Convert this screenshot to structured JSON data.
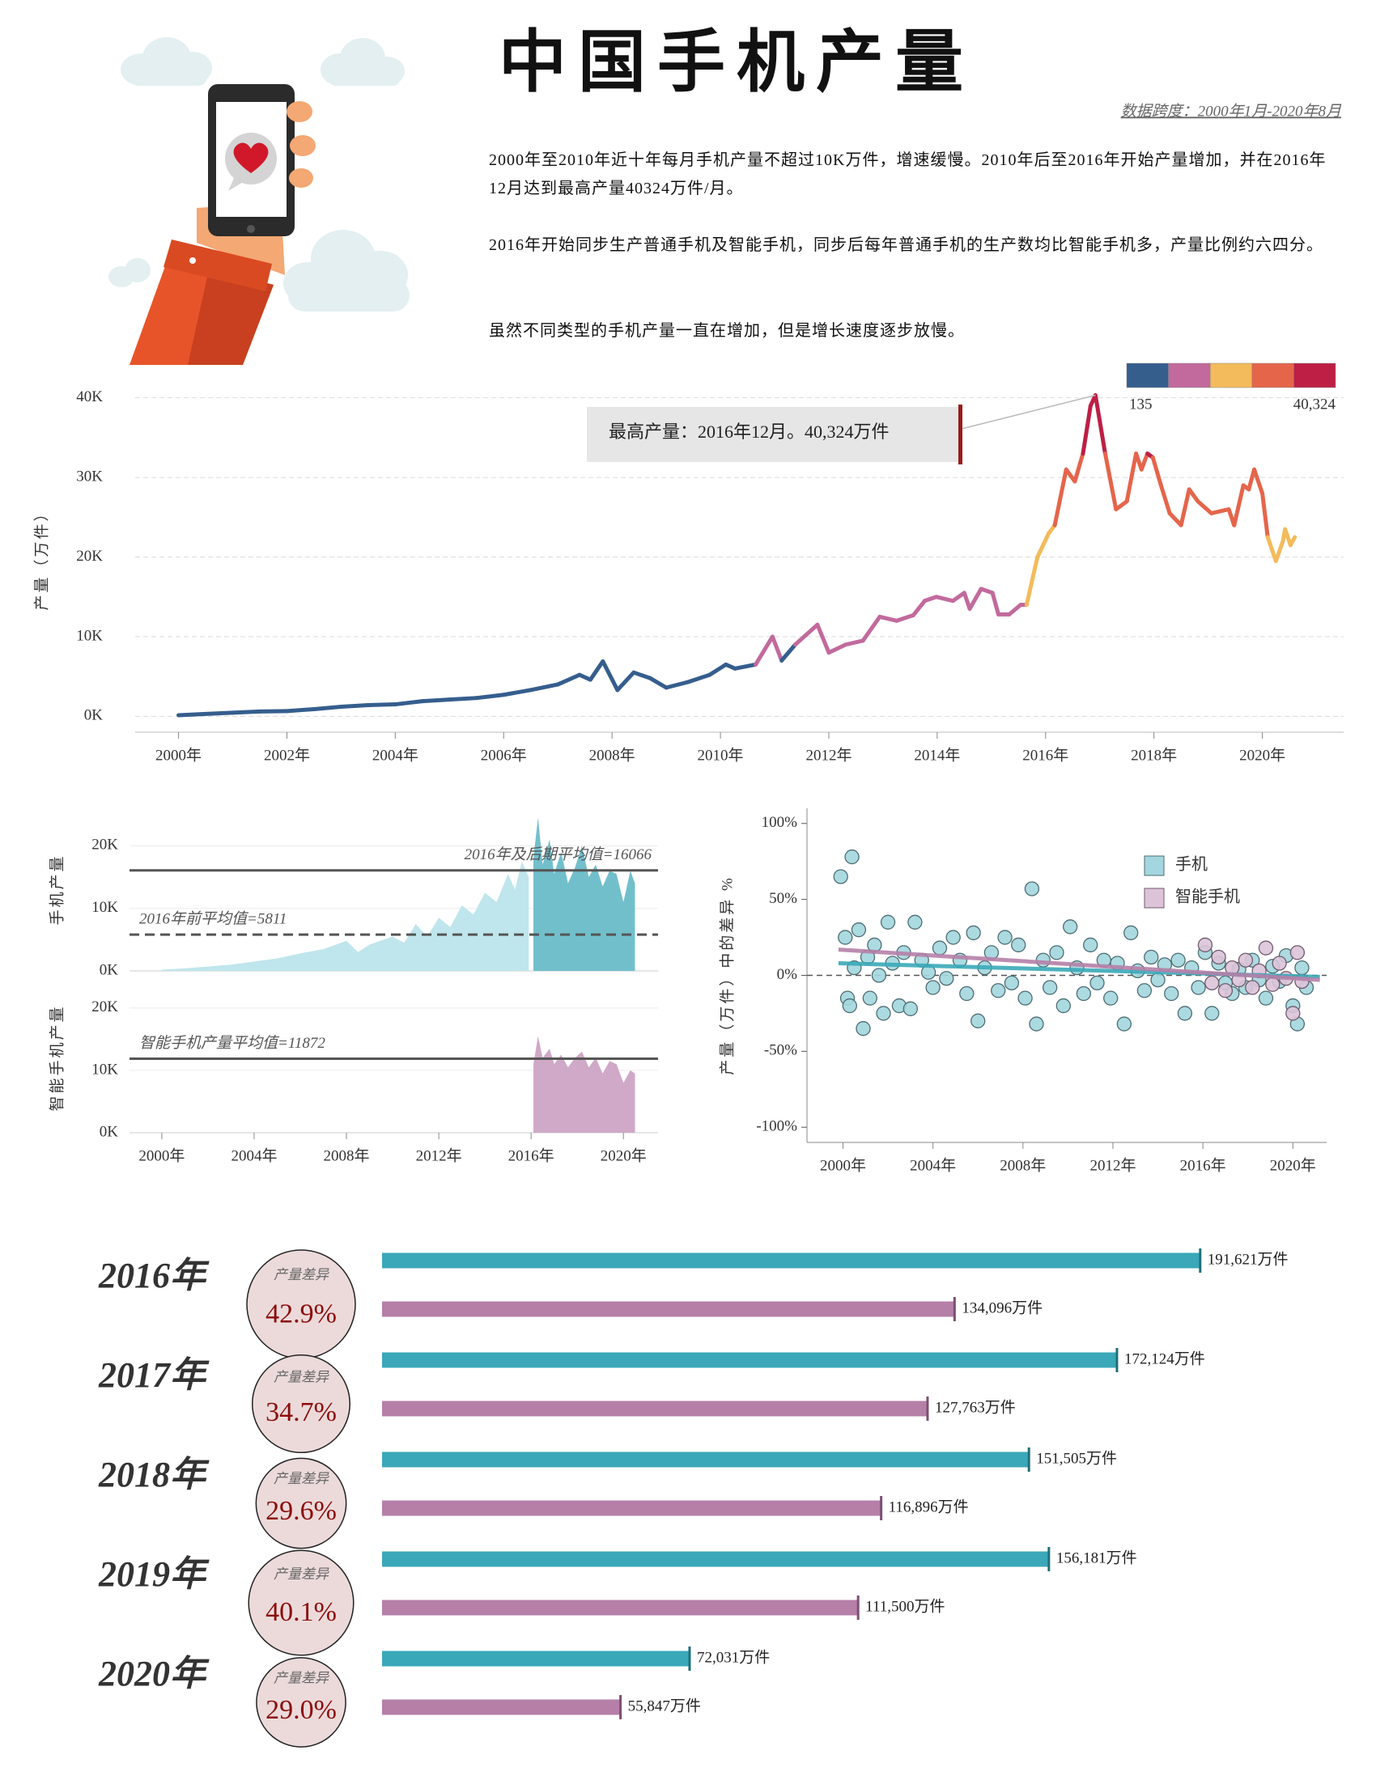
{
  "header": {
    "title": "中国手机产量",
    "date_span": "数据跨度：2000年1月-2020年8月",
    "paragraphs": [
      "2000年至2010年近十年每月手机产量不超过10K万件，增速缓慢。2010年后至2016年开始产量增加，并在2016年12月达到最高产量40324万件/月。",
      "2016年开始同步生产普通手机及智能手机，同步后每年普通手机的生产数均比智能手机多，产量比例约六四分。",
      "虽然不同类型的手机产量一直在增加，但是增长速度逐步放慢。"
    ]
  },
  "chart_data": [
    {
      "type": "line",
      "y_label": "产量（万件）",
      "annotation": "最高产量：2016年12月。40,324万件",
      "xlim": [
        1999.2,
        2021.5
      ],
      "xticks": [
        {
          "value": 2000,
          "label": "2000年"
        },
        {
          "value": 2002,
          "label": "2002年"
        },
        {
          "value": 2004,
          "label": "2004年"
        },
        {
          "value": 2006,
          "label": "2006年"
        },
        {
          "value": 2008,
          "label": "2008年"
        },
        {
          "value": 2010,
          "label": "2010年"
        },
        {
          "value": 2012,
          "label": "2012年"
        },
        {
          "value": 2014,
          "label": "2014年"
        },
        {
          "value": 2016,
          "label": "2016年"
        },
        {
          "value": 2018,
          "label": "2018年"
        },
        {
          "value": 2020,
          "label": "2020年"
        }
      ],
      "ylim": [
        -2000,
        42000
      ],
      "yticks": [
        {
          "value": 0,
          "label": "0K"
        },
        {
          "value": 10000,
          "label": "10K"
        },
        {
          "value": 20000,
          "label": "20K"
        },
        {
          "value": 30000,
          "label": "30K"
        },
        {
          "value": 40000,
          "label": "40K"
        }
      ],
      "grid": true,
      "x": [
        2000,
        2000.5,
        2001,
        2001.5,
        2002,
        2002.5,
        2003,
        2003.5,
        2004,
        2004.5,
        2005,
        2005.5,
        2006,
        2006.5,
        2007,
        2007.4,
        2007.6,
        2007.83,
        2008.1,
        2008.4,
        2008.7,
        2009,
        2009.4,
        2009.8,
        2010.1,
        2010.27,
        2010.65,
        2010.96,
        2011.13,
        2011.38,
        2011.79,
        2012,
        2012.31,
        2012.63,
        2012.94,
        2013.25,
        2013.56,
        2013.77,
        2013.98,
        2014.29,
        2014.5,
        2014.6,
        2014.81,
        2015.02,
        2015.13,
        2015.33,
        2015.54,
        2015.65,
        2015.85,
        2016.06,
        2016.17,
        2016.38,
        2016.54,
        2016.69,
        2016.83,
        2016.92,
        2017.1,
        2017.3,
        2017.5,
        2017.67,
        2017.77,
        2017.88,
        2017.98,
        2018.13,
        2018.29,
        2018.5,
        2018.65,
        2018.81,
        2019.06,
        2019.38,
        2019.48,
        2019.65,
        2019.75,
        2019.85,
        2020,
        2020.1,
        2020.25,
        2020.38,
        2020.42,
        2020.52,
        2020.6
      ],
      "series": [
        {
          "values": [
            135,
            300,
            450,
            600,
            650,
            900,
            1200,
            1400,
            1500,
            1900,
            2100,
            2300,
            2700,
            3300,
            4000,
            5200,
            4600,
            6900,
            3300,
            5500,
            4800,
            3600,
            4300,
            5200,
            6500,
            6000,
            6500,
            10000,
            7000,
            9000,
            11500,
            8000,
            9000,
            9500,
            12500,
            12000,
            12700,
            14500,
            15000,
            14500,
            15500,
            13500,
            16000,
            15500,
            12800,
            12800,
            14000,
            14000,
            20000,
            23000,
            24000,
            31000,
            29500,
            33000,
            39000,
            40324,
            33000,
            26000,
            27000,
            33000,
            31000,
            33000,
            32500,
            29000,
            25500,
            24000,
            28500,
            27000,
            25500,
            26000,
            24000,
            29000,
            28500,
            31000,
            28000,
            22500,
            19500,
            22000,
            23500,
            21500,
            22500
          ]
        }
      ],
      "colorbar": {
        "colors": [
          "#355e8d",
          "#c26a9d",
          "#f3bb5b",
          "#e5654b",
          "#bd1f45"
        ],
        "ticks": [
          135,
          {
            "value": 40324,
            "label": "40,324"
          }
        ]
      }
    },
    {
      "type": "area",
      "y_label": "手机产量",
      "xlim": [
        1998.6,
        2021.5
      ],
      "ylim": [
        0,
        26000
      ],
      "yticks": [
        {
          "value": 0,
          "label": "0K"
        },
        {
          "value": 10000,
          "label": "10K"
        },
        {
          "value": 20000,
          "label": "20K"
        }
      ],
      "grid": true,
      "series": [
        {
          "color": "#bfe6ec",
          "x": [
            2000,
            2001,
            2002,
            2003,
            2004,
            2005,
            2006,
            2007,
            2008,
            2008.5,
            2009,
            2010,
            2010.5,
            2011,
            2011.5,
            2012,
            2012.5,
            2013,
            2013.5,
            2014,
            2014.5,
            2015,
            2015.3,
            2015.6,
            2015.9
          ],
          "values": [
            200,
            400,
            700,
            1000,
            1500,
            2000,
            2800,
            3500,
            4800,
            3000,
            4200,
            5500,
            4500,
            7500,
            5500,
            8500,
            7000,
            10500,
            9000,
            12500,
            11000,
            15500,
            13000,
            17500,
            15000
          ]
        },
        {
          "color": "#72bfcc",
          "x": [
            2016.1,
            2016.3,
            2016.5,
            2016.8,
            2017,
            2017.3,
            2017.6,
            2017.9,
            2018.2,
            2018.5,
            2018.8,
            2019.1,
            2019.4,
            2019.7,
            2020,
            2020.3,
            2020.5
          ],
          "values": [
            18000,
            24500,
            17000,
            21000,
            15500,
            19000,
            14000,
            16500,
            20000,
            15000,
            17000,
            13500,
            16000,
            15500,
            11000,
            16000,
            14000
          ]
        }
      ],
      "reference_lines": [
        {
          "value": 16066,
          "label": "2016年及后期平均值=16066",
          "style": "solid"
        },
        {
          "value": 5811,
          "label": "2016年前平均值=5811",
          "style": "dashed"
        }
      ]
    },
    {
      "type": "area",
      "y_label": "智能手机产量",
      "xlim": [
        1998.6,
        2021.5
      ],
      "xticks": [
        {
          "value": 2000,
          "label": "2000年"
        },
        {
          "value": 2004,
          "label": "2004年"
        },
        {
          "value": 2008,
          "label": "2008年"
        },
        {
          "value": 2012,
          "label": "2012年"
        },
        {
          "value": 2016,
          "label": "2016年"
        },
        {
          "value": 2020,
          "label": "2020年"
        }
      ],
      "ylim": [
        0,
        24000
      ],
      "yticks": [
        {
          "value": 0,
          "label": "0K"
        },
        {
          "value": 10000,
          "label": "10K"
        },
        {
          "value": 20000,
          "label": "20K"
        }
      ],
      "grid": true,
      "series": [
        {
          "color": "#cfa9c7",
          "x": [
            2016.1,
            2016.3,
            2016.5,
            2016.8,
            2017,
            2017.3,
            2017.6,
            2017.9,
            2018.2,
            2018.5,
            2018.8,
            2019.1,
            2019.4,
            2019.7,
            2020,
            2020.3,
            2020.5
          ],
          "values": [
            11000,
            15500,
            12000,
            13500,
            11000,
            12500,
            10500,
            12000,
            13000,
            10500,
            12000,
            9500,
            11500,
            11000,
            8000,
            10000,
            9500
          ]
        }
      ],
      "reference_lines": [
        {
          "value": 11872,
          "label": "智能手机产量平均值=11872",
          "style": "solid"
        }
      ]
    },
    {
      "type": "scatter",
      "y_label": "产量（万件）中的差异 %",
      "xlim": [
        1998.4,
        2021.5
      ],
      "xticks": [
        {
          "value": 2000,
          "label": "2000年"
        },
        {
          "value": 2004,
          "label": "2004年"
        },
        {
          "value": 2008,
          "label": "2008年"
        },
        {
          "value": 2012,
          "label": "2012年"
        },
        {
          "value": 2016,
          "label": "2016年"
        },
        {
          "value": 2020,
          "label": "2020年"
        }
      ],
      "ylim": [
        -110,
        110
      ],
      "yticks": [
        {
          "value": -100,
          "label": "-100%"
        },
        {
          "value": -50,
          "label": "-50%"
        },
        {
          "value": 0,
          "label": "0%"
        },
        {
          "value": 50,
          "label": "50%"
        },
        {
          "value": 100,
          "label": "100%"
        }
      ],
      "zero_line": true,
      "series": [
        {
          "name": "手机",
          "color": "#a3d6de",
          "stroke": "#4d6d73",
          "x": [
            1999.9,
            2000.4,
            2000.1,
            2000.2,
            2000.3,
            2000.5,
            2000.7,
            2000.9,
            2001.1,
            2001.2,
            2001.4,
            2001.6,
            2001.8,
            2002.0,
            2002.2,
            2002.5,
            2002.7,
            2003.0,
            2003.2,
            2003.5,
            2003.8,
            2004.0,
            2004.3,
            2004.6,
            2004.9,
            2005.2,
            2005.5,
            2005.8,
            2006.0,
            2006.3,
            2006.6,
            2006.9,
            2007.2,
            2007.5,
            2007.8,
            2008.1,
            2008.4,
            2008.6,
            2008.9,
            2009.2,
            2009.5,
            2009.8,
            2010.1,
            2010.4,
            2010.7,
            2011.0,
            2011.3,
            2011.6,
            2011.9,
            2012.2,
            2012.5,
            2012.8,
            2013.1,
            2013.4,
            2013.7,
            2014.0,
            2014.3,
            2014.6,
            2014.9,
            2015.2,
            2015.5,
            2015.8,
            2016.1,
            2016.4,
            2016.7,
            2017.0,
            2017.3,
            2017.6,
            2017.9,
            2018.2,
            2018.5,
            2018.8,
            2019.1,
            2019.4,
            2019.7,
            2020.0,
            2020.2,
            2020.4,
            2020.6
          ],
          "values": [
            65,
            78,
            25,
            -15,
            -20,
            5,
            30,
            -35,
            12,
            -15,
            20,
            0,
            -25,
            35,
            8,
            -20,
            15,
            -22,
            35,
            10,
            2,
            -8,
            18,
            -2,
            25,
            10,
            -12,
            28,
            -30,
            5,
            15,
            -10,
            25,
            -5,
            20,
            -15,
            57,
            -32,
            10,
            -8,
            15,
            -20,
            32,
            5,
            -12,
            20,
            -5,
            10,
            -15,
            8,
            -32,
            28,
            3,
            -10,
            12,
            -3,
            7,
            -12,
            10,
            -25,
            5,
            -8,
            15,
            -25,
            8,
            -5,
            -12,
            4,
            -8,
            10,
            -3,
            -15,
            6,
            -4,
            13,
            -20,
            -32,
            5,
            -8
          ],
          "trend": {
            "color": "#3aa8b8",
            "x": [
              1999.8,
              2021.2
            ],
            "values": [
              8,
              -1
            ]
          }
        },
        {
          "name": "智能手机",
          "color": "#dcc3d8",
          "stroke": "#6f5b6c",
          "x": [
            2016.1,
            2016.4,
            2016.7,
            2017.0,
            2017.3,
            2017.6,
            2017.9,
            2018.2,
            2018.5,
            2018.8,
            2019.1,
            2019.4,
            2019.7,
            2020.0,
            2020.2,
            2020.4
          ],
          "values": [
            20,
            -5,
            12,
            -10,
            5,
            -3,
            10,
            -8,
            3,
            18,
            -6,
            8,
            -2,
            -25,
            15,
            -4
          ],
          "trend": {
            "color": "#b57fa8",
            "x": [
              1999.8,
              2021.2
            ],
            "values": [
              17,
              -3
            ]
          }
        }
      ]
    },
    {
      "type": "hbar",
      "categories": [
        "2016年",
        "2017年",
        "2018年",
        "2019年",
        "2020年"
      ],
      "xlim": [
        0,
        200000
      ],
      "series": [
        {
          "color": "#3aa8b8",
          "cap": "#1f6f7c",
          "values": [
            191621,
            172124,
            151505,
            156181,
            72031
          ],
          "value_labels": [
            "191,621万件",
            "172,124万件",
            "151,505万件",
            "156,181万件",
            "72,031万件"
          ]
        },
        {
          "color": "#b57fa8",
          "cap": "#7d4f72",
          "values": [
            134096,
            127763,
            116896,
            111500,
            55847
          ],
          "value_labels": [
            "134,096万件",
            "127,763万件",
            "116,896万件",
            "111,500万件",
            "55,847万件"
          ]
        }
      ],
      "diff_title": "产量差异",
      "diffs": [
        42.9,
        34.7,
        29.6,
        40.1,
        29.0
      ],
      "diff_labels": [
        "42.9%",
        "34.7%",
        "29.6%",
        "40.1%",
        "29.0%"
      ]
    }
  ]
}
